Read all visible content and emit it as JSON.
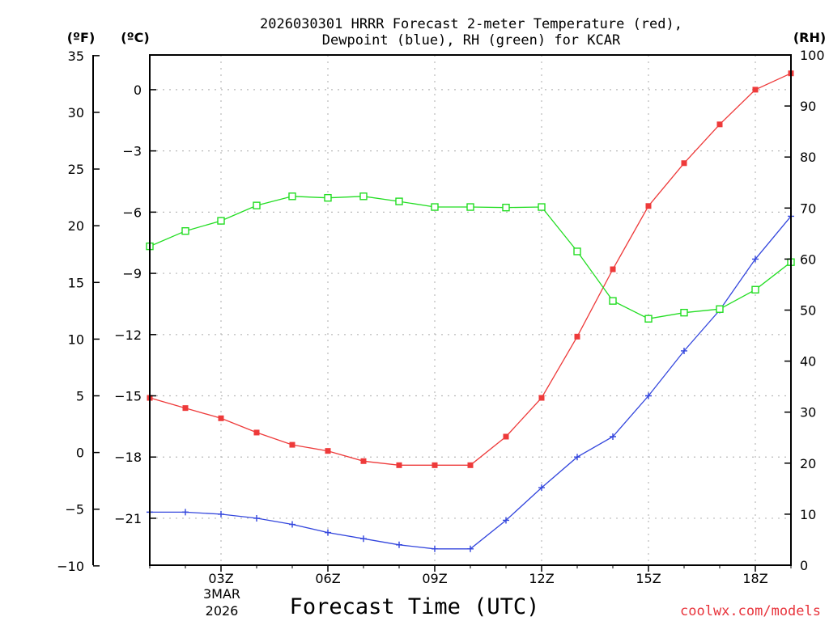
{
  "chart_data": {
    "type": "line",
    "title_line1": "2026030301 HRRR Forecast 2-meter Temperature (red),",
    "title_line2": "Dewpoint (blue), RH (green) for KCAR",
    "xlabel": "Forecast Time (UTC)",
    "credit": "coolwx.com/models",
    "date_label_line1": "3MAR",
    "date_label_line2": "2026",
    "left_outer_unit": "(ºF)",
    "left_inner_unit": "(ºC)",
    "right_unit": "(RH)",
    "x_hours": [
      1,
      2,
      3,
      4,
      5,
      6,
      7,
      8,
      9,
      10,
      11,
      12,
      13,
      14,
      15,
      16,
      17,
      18,
      19
    ],
    "x_range": [
      1,
      19
    ],
    "x_ticks": [
      {
        "hour": 3,
        "label": "03Z"
      },
      {
        "hour": 6,
        "label": "06Z"
      },
      {
        "hour": 9,
        "label": "09Z"
      },
      {
        "hour": 12,
        "label": "12Z"
      },
      {
        "hour": 15,
        "label": "15Z"
      },
      {
        "hour": 18,
        "label": "18Z"
      }
    ],
    "celsius_range": [
      -23.3,
      1.7
    ],
    "celsius_ticks": [
      "0",
      "−3",
      "−6",
      "−9",
      "−12",
      "−15",
      "−18",
      "−21"
    ],
    "celsius_tick_values": [
      0,
      -3,
      -6,
      -9,
      -12,
      -15,
      -18,
      -21
    ],
    "fahrenheit_ticks": [
      "35",
      "30",
      "25",
      "20",
      "15",
      "10",
      "5",
      "0",
      "−5",
      "−10"
    ],
    "fahrenheit_tick_values": [
      35,
      30,
      25,
      20,
      15,
      10,
      5,
      0,
      -5,
      -10
    ],
    "rh_range": [
      0,
      100
    ],
    "rh_ticks": [
      "100",
      "90",
      "80",
      "70",
      "60",
      "50",
      "40",
      "30",
      "20",
      "10",
      "0"
    ],
    "rh_tick_values": [
      100,
      90,
      80,
      70,
      60,
      50,
      40,
      30,
      20,
      10,
      0
    ],
    "series": [
      {
        "name": "Temperature",
        "unit": "°C",
        "color": "#ee3a3a",
        "marker": "filled-square",
        "values": [
          -15.1,
          -15.6,
          -16.1,
          -16.8,
          -17.4,
          -17.7,
          -18.2,
          -18.4,
          -18.4,
          -18.4,
          -17.0,
          -15.1,
          -12.1,
          -8.8,
          -5.7,
          -3.6,
          -1.7,
          0.0,
          0.8
        ]
      },
      {
        "name": "Dewpoint",
        "unit": "°C",
        "color": "#3346dd",
        "marker": "plus",
        "values": [
          -20.7,
          -20.7,
          -20.8,
          -21.0,
          -21.3,
          -21.7,
          -22.0,
          -22.3,
          -22.5,
          -22.5,
          -21.1,
          -19.5,
          -18.0,
          -17.0,
          -15.0,
          -12.8,
          -10.8,
          -8.3,
          -6.2
        ]
      },
      {
        "name": "RH",
        "unit": "%",
        "color": "#22dd22",
        "marker": "open-square",
        "values": [
          62.5,
          65.5,
          67.5,
          70.5,
          72.3,
          72.0,
          72.3,
          71.3,
          70.2,
          70.2,
          70.1,
          70.2,
          61.5,
          51.8,
          48.3,
          49.5,
          50.2,
          54.0,
          59.4
        ]
      }
    ]
  }
}
